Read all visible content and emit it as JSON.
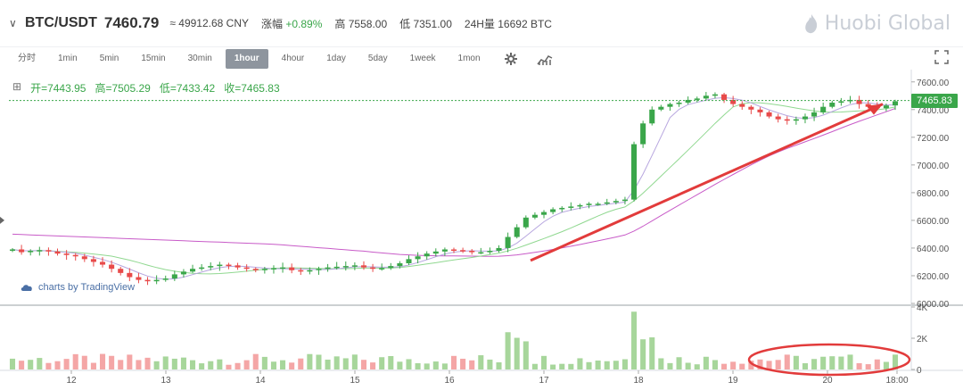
{
  "header": {
    "pair": "BTC/USDT",
    "price": "7460.79",
    "cny": "≈ 49912.68 CNY",
    "change_label": "涨幅",
    "change_value": "+0.89%",
    "high_label": "高",
    "high_value": "7558.00",
    "low_label": "低",
    "low_value": "7351.00",
    "vol_label": "24H量",
    "vol_value": "16692 BTC",
    "logo": "Huobi Global"
  },
  "toolbar": {
    "intervals": [
      "分时",
      "1min",
      "5min",
      "15min",
      "30min",
      "1hour",
      "4hour",
      "1day",
      "5day",
      "1week",
      "1mon"
    ],
    "active": "1hour"
  },
  "ohlc": {
    "open": "开=7443.95",
    "high": "高=7505.29",
    "low": "低=7433.42",
    "close": "收=7465.83"
  },
  "credit": "charts by TradingView",
  "last_price_tag": "7465.83",
  "colors": {
    "up": "#3aa64a",
    "down": "#e84a4a",
    "up_vol": "#a7d69b",
    "down_vol": "#f4a6a6",
    "ma_fast": "#b7a6df",
    "ma_mid": "#90d890",
    "ma_slow": "#c85bc8",
    "annotation": "#e23b3b"
  },
  "chart_data": {
    "type": "candlestick",
    "x_ticks": [
      "12",
      "13",
      "14",
      "15",
      "16",
      "17",
      "18",
      "19",
      "20",
      "18:00"
    ],
    "price_ticks": [
      6000,
      6200,
      6400,
      6600,
      6800,
      7000,
      7200,
      7400,
      7600
    ],
    "price_tick_labels": [
      "6000.00",
      "6200.00",
      "6400.00",
      "6600.00",
      "6800.00",
      "7000.00",
      "7200.00",
      "7400.00",
      "7600.00"
    ],
    "ylim": [
      6000,
      7650
    ],
    "volume_ticks": [
      0,
      2000,
      4000
    ],
    "volume_tick_labels": [
      "0",
      "2K",
      "4K"
    ],
    "volume_ylim": [
      0,
      4000
    ],
    "last_price": 7465.83,
    "close_series": [
      6390,
      6370,
      6380,
      6385,
      6375,
      6360,
      6350,
      6340,
      6320,
      6300,
      6280,
      6250,
      6220,
      6190,
      6170,
      6160,
      6170,
      6180,
      6210,
      6230,
      6250,
      6260,
      6270,
      6280,
      6275,
      6260,
      6250,
      6240,
      6250,
      6255,
      6260,
      6240,
      6235,
      6240,
      6250,
      6260,
      6265,
      6270,
      6275,
      6260,
      6250,
      6255,
      6270,
      6290,
      6320,
      6340,
      6360,
      6375,
      6390,
      6385,
      6380,
      6370,
      6370,
      6380,
      6400,
      6480,
      6550,
      6620,
      6640,
      6660,
      6680,
      6690,
      6700,
      6710,
      6720,
      6720,
      6730,
      6740,
      6750,
      7150,
      7300,
      7400,
      7420,
      7440,
      7450,
      7470,
      7480,
      7500,
      7510,
      7470,
      7440,
      7420,
      7400,
      7380,
      7350,
      7330,
      7320,
      7330,
      7350,
      7380,
      7420,
      7450,
      7460,
      7470,
      7440,
      7420,
      7410,
      7430,
      7460
    ]
  }
}
